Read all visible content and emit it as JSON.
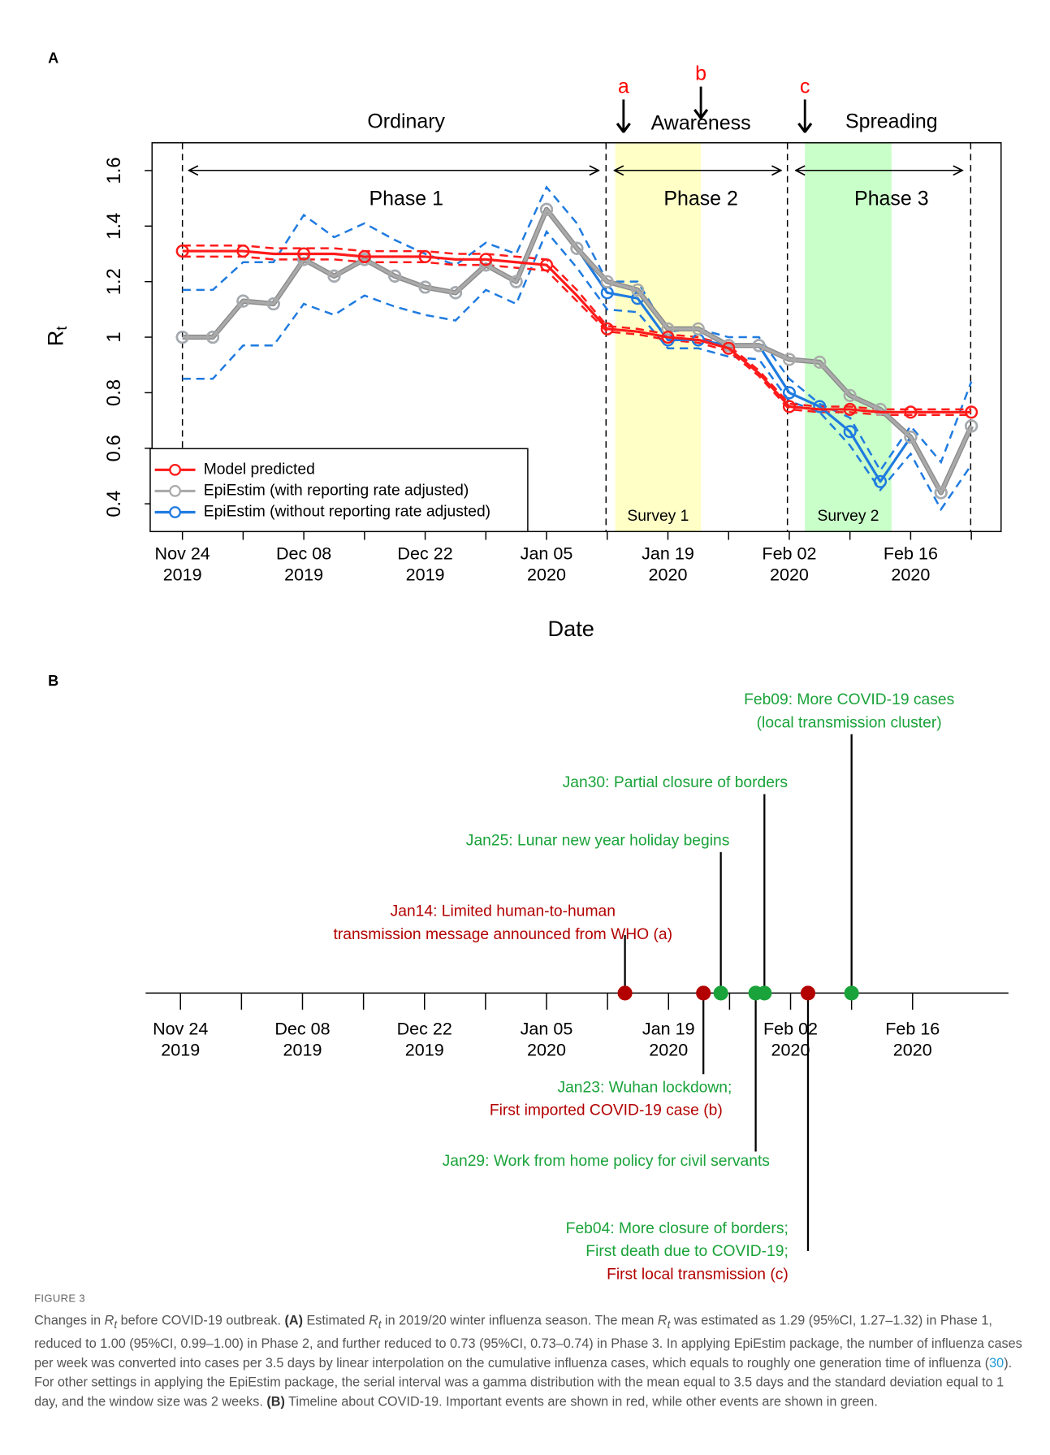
{
  "chart_data": [
    {
      "type": "line",
      "panel": "A",
      "xlabel": "Date",
      "ylabel": {
        "text": "R",
        "subscript": "t"
      },
      "categories": [
        "Nov 24\n2019",
        null,
        null,
        null,
        "Dec 08\n2019",
        null,
        null,
        null,
        "Dec 22\n2019",
        null,
        null,
        null,
        "Jan 05\n2020",
        null,
        null,
        null,
        "Jan 19\n2020",
        null,
        null,
        null,
        "Feb 02\n2020",
        null,
        null,
        null,
        "Feb 16\n2020",
        null,
        null
      ],
      "ylim": [
        0.3,
        1.7
      ],
      "yticks": [
        0.4,
        0.6,
        0.8,
        1.0,
        1.2,
        1.4,
        1.6
      ],
      "legend": "bottom left",
      "series": [
        {
          "name": "Model predicted",
          "color": "#ff1a1a",
          "marker_every": 2,
          "values": [
            1.31,
            1.31,
            1.31,
            1.3,
            1.3,
            1.3,
            1.29,
            1.29,
            1.29,
            1.28,
            1.28,
            1.27,
            1.26,
            1.15,
            1.03,
            1.02,
            1.0,
            0.99,
            0.96,
            0.87,
            0.75,
            0.74,
            0.74,
            0.73,
            0.73,
            0.73,
            0.73
          ],
          "ci_lower": [
            1.29,
            1.29,
            1.29,
            1.28,
            1.28,
            1.28,
            1.27,
            1.27,
            1.27,
            1.26,
            1.26,
            1.25,
            1.24,
            1.13,
            1.02,
            1.01,
            0.99,
            0.98,
            0.95,
            0.86,
            0.74,
            0.73,
            0.73,
            0.72,
            0.72,
            0.72,
            0.72
          ],
          "ci_upper": [
            1.33,
            1.33,
            1.33,
            1.32,
            1.32,
            1.32,
            1.31,
            1.31,
            1.31,
            1.3,
            1.3,
            1.29,
            1.28,
            1.17,
            1.04,
            1.03,
            1.01,
            1.0,
            0.97,
            0.88,
            0.76,
            0.75,
            0.75,
            0.74,
            0.74,
            0.74,
            0.74
          ]
        },
        {
          "name": "EpiEstim (with reporting rate adjusted)",
          "color": "#aaaaaa",
          "marker_every": 1,
          "values": [
            1.0,
            1.0,
            1.13,
            1.12,
            1.28,
            1.22,
            1.28,
            1.22,
            1.18,
            1.16,
            1.26,
            1.2,
            1.46,
            1.32,
            1.2,
            1.17,
            1.03,
            1.03,
            0.97,
            0.97,
            0.92,
            0.91,
            0.79,
            0.74,
            0.64,
            0.44,
            0.68
          ]
        },
        {
          "name": "EpiEstim (without reporting rate adjusted)",
          "color": "#1f7be0",
          "marker_every": 1,
          "values": [
            1.0,
            1.0,
            1.13,
            1.12,
            1.28,
            1.22,
            1.28,
            1.22,
            1.18,
            1.16,
            1.26,
            1.2,
            1.46,
            1.32,
            1.16,
            1.14,
            0.99,
            0.99,
            0.97,
            0.97,
            0.8,
            0.75,
            0.66,
            0.48,
            0.64,
            0.44,
            0.68
          ],
          "ci_lower": [
            0.85,
            0.85,
            0.97,
            0.97,
            1.12,
            1.08,
            1.15,
            1.11,
            1.08,
            1.06,
            1.17,
            1.12,
            1.38,
            1.25,
            1.1,
            1.09,
            0.96,
            0.96,
            0.93,
            0.92,
            0.77,
            0.73,
            0.61,
            0.45,
            0.58,
            0.38,
            0.54
          ],
          "ci_upper": [
            1.17,
            1.17,
            1.27,
            1.27,
            1.44,
            1.36,
            1.41,
            1.35,
            1.3,
            1.26,
            1.34,
            1.3,
            1.54,
            1.41,
            1.2,
            1.2,
            1.02,
            1.03,
            1.0,
            1.0,
            0.85,
            0.76,
            0.71,
            0.52,
            0.68,
            0.55,
            0.84
          ]
        }
      ],
      "periods": [
        {
          "name": "Ordinary",
          "label": "Phase 1"
        },
        {
          "name": "Awareness",
          "label": "Phase 2"
        },
        {
          "name": "Spreading",
          "label": "Phase 3"
        }
      ],
      "surveys": [
        {
          "label": "Survey 1",
          "color": "#ffffc6"
        },
        {
          "label": "Survey 2",
          "color": "#c9ffc9"
        }
      ],
      "event_markers": {
        "labels": [
          "a",
          "b",
          "c"
        ],
        "color": "#ff0000"
      }
    },
    {
      "type": "timeline",
      "panel": "B",
      "xlim": [
        "2019-11-20",
        "2020-02-27"
      ],
      "xticks": [
        {
          "value": "2019-11-24",
          "label": "Nov 24\n2019"
        },
        {
          "value": "2019-12-08",
          "label": "Dec 08\n2019"
        },
        {
          "value": "2019-12-22",
          "label": "Dec 22\n2019"
        },
        {
          "value": "2020-01-05",
          "label": "Jan 05\n2020"
        },
        {
          "value": "2020-01-19",
          "label": "Jan 19\n2020"
        },
        {
          "value": "2020-02-02",
          "label": "Feb 02\n2020"
        },
        {
          "value": "2020-02-16",
          "label": "Feb 16\n2020"
        }
      ],
      "events": [
        {
          "date": "2020-01-14",
          "color": "#b30000",
          "lines": [
            {
              "text": "Jan14: Limited human-to-human",
              "color": "#b30000"
            },
            {
              "text": "transmission message announced from WHO (a)",
              "color": "#b30000"
            }
          ]
        },
        {
          "date": "2020-01-23",
          "color": "#b30000",
          "lines": [
            {
              "text": "Jan23: Wuhan lockdown;",
              "color": "#1aa33a"
            },
            {
              "text": "First imported COVID-19 case (b)",
              "color": "#b30000"
            }
          ]
        },
        {
          "date": "2020-01-25",
          "color": "#1aa33a",
          "lines": [
            {
              "text": "Jan25: Lunar new year holiday begins",
              "color": "#1aa33a"
            }
          ]
        },
        {
          "date": "2020-01-29",
          "color": "#1aa33a",
          "lines": [
            {
              "text": "Jan29: Work from home policy for civil servants",
              "color": "#1aa33a"
            }
          ]
        },
        {
          "date": "2020-01-30",
          "color": "#1aa33a",
          "lines": [
            {
              "text": "Jan30: Partial closure of borders",
              "color": "#1aa33a"
            }
          ]
        },
        {
          "date": "2020-02-04",
          "color": "#b30000",
          "lines": [
            {
              "text": "Feb04: More closure of borders;",
              "color": "#1aa33a"
            },
            {
              "text": "First death due to COVID-19;",
              "color": "#1aa33a"
            },
            {
              "text": "First local transmission (c)",
              "color": "#b30000"
            }
          ]
        },
        {
          "date": "2020-02-09",
          "color": "#1aa33a",
          "lines": [
            {
              "text": "Feb09: More COVID-19 cases",
              "color": "#1aa33a"
            },
            {
              "text": "(local transmission cluster)",
              "color": "#1aa33a"
            }
          ]
        }
      ]
    }
  ],
  "figure_label": "FIGURE 3",
  "caption": [
    "Changes in ",
    "R",
    "t",
    " before COVID-19 outbreak. ",
    "(A)",
    " Estimated ",
    "R",
    "t",
    " in 2019/20 winter influenza season. The mean ",
    "R",
    "t",
    " was estimated as 1.29 (95%CI, 1.27–1.32) in Phase 1, reduced to 1.00 (95%CI, 0.99–1.00) in Phase 2, and further reduced to 0.73 (95%CI, 0.73–0.74) in Phase 3. In applying EpiEstim package, the number of influenza cases per week was converted into cases per 3.5 days by linear interpolation on the cumulative influenza cases, which equals to roughly one generation time of influenza (",
    "30",
    "). For other settings in applying the EpiEstim package, the serial interval was a gamma distribution with the mean equal to 3.5 days and the standard deviation equal to 1 day, and the window size was 2 weeks. ",
    "(B)",
    " Timeline about COVID-19. Important events are shown in red, while other events are shown in green."
  ]
}
